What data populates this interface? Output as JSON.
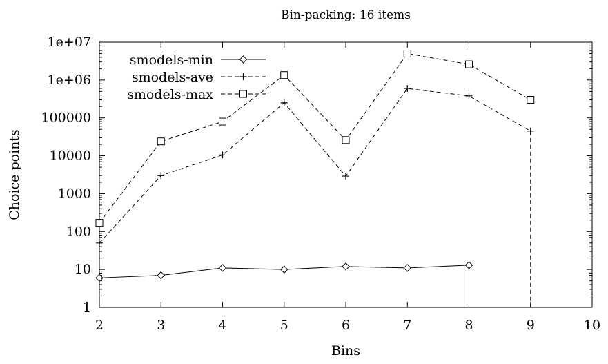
{
  "chart_data": {
    "type": "line",
    "title": "Bin-packing: 16 items",
    "xlabel": "Bins",
    "ylabel": "Choice points",
    "xlim": [
      2,
      10
    ],
    "ylim": [
      1,
      10000000
    ],
    "yscale": "log",
    "grid": false,
    "legend_position": "top-left",
    "x_ticks": [
      "2",
      "3",
      "4",
      "5",
      "6",
      "7",
      "8",
      "9",
      "10"
    ],
    "y_ticks": [
      "1",
      "10",
      "100",
      "1000",
      "10000",
      "100000",
      "1e+06",
      "1e+07"
    ],
    "series": [
      {
        "name": "smodels-min",
        "marker": "diamond",
        "dash": "solid",
        "x": [
          2,
          3,
          4,
          5,
          6,
          7,
          8
        ],
        "values": [
          6,
          7,
          11,
          10,
          12,
          11,
          13
        ],
        "drop_to_axis_at_end": true
      },
      {
        "name": "smodels-ave",
        "marker": "plus",
        "dash": "dashed",
        "x": [
          2,
          3,
          4,
          5,
          6,
          7,
          8,
          9
        ],
        "values": [
          50,
          3000,
          10500,
          250000,
          2900,
          600000,
          380000,
          45000
        ],
        "drop_to_axis_at_end": true
      },
      {
        "name": "smodels-max",
        "marker": "square",
        "dash": "dashed",
        "x": [
          2,
          3,
          4,
          5,
          6,
          7,
          8,
          9
        ],
        "values": [
          170,
          24000,
          80000,
          1350000,
          26000,
          5000000,
          2600000,
          300000
        ],
        "drop_to_axis_at_end": false
      }
    ]
  }
}
